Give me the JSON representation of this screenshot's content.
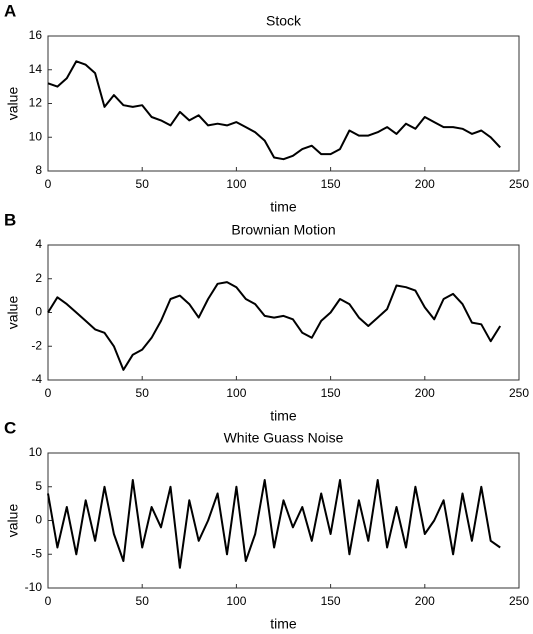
{
  "chart_data": [
    {
      "type": "line",
      "label": "A",
      "title": "Stock",
      "x_label": "time",
      "y_label": "value",
      "x": [
        0,
        5,
        10,
        15,
        20,
        25,
        30,
        35,
        40,
        45,
        50,
        55,
        60,
        65,
        70,
        75,
        80,
        85,
        90,
        95,
        100,
        105,
        110,
        115,
        120,
        125,
        130,
        135,
        140,
        145,
        150,
        155,
        160,
        165,
        170,
        175,
        180,
        185,
        190,
        195,
        200,
        205,
        210,
        215,
        220,
        225,
        230,
        235,
        240
      ],
      "series": [
        {
          "color": "#000000",
          "values": [
            13.2,
            13.0,
            13.5,
            14.5,
            14.3,
            13.8,
            11.8,
            12.5,
            11.9,
            11.8,
            11.9,
            11.2,
            11.0,
            10.7,
            11.5,
            11.0,
            11.3,
            10.7,
            10.8,
            10.7,
            10.9,
            10.6,
            10.3,
            9.8,
            8.8,
            8.7,
            8.9,
            9.3,
            9.5,
            9.0,
            9.0,
            9.3,
            10.4,
            10.1,
            10.1,
            10.3,
            10.6,
            10.2,
            10.8,
            10.5,
            11.2,
            10.9,
            10.6,
            10.6,
            10.5,
            10.2,
            10.4,
            10.0,
            9.4
          ]
        }
      ],
      "xlim": [
        0,
        250
      ],
      "xticks": [
        0,
        50,
        100,
        150,
        200,
        250
      ],
      "ylim": [
        8,
        16
      ],
      "yticks": [
        8,
        10,
        12,
        14,
        16
      ]
    },
    {
      "type": "line",
      "label": "B",
      "title": "Brownian Motion",
      "x_label": "time",
      "y_label": "value",
      "x": [
        0,
        5,
        10,
        15,
        20,
        25,
        30,
        35,
        40,
        45,
        50,
        55,
        60,
        65,
        70,
        75,
        80,
        85,
        90,
        95,
        100,
        105,
        110,
        115,
        120,
        125,
        130,
        135,
        140,
        145,
        150,
        155,
        160,
        165,
        170,
        175,
        180,
        185,
        190,
        195,
        200,
        205,
        210,
        215,
        220,
        225,
        230,
        235,
        240
      ],
      "series": [
        {
          "color": "#000000",
          "values": [
            0,
            0.9,
            0.5,
            0,
            -0.5,
            -1,
            -1.2,
            -2,
            -3.4,
            -2.5,
            -2.2,
            -1.5,
            -0.5,
            0.8,
            1,
            0.5,
            -0.3,
            0.8,
            1.7,
            1.8,
            1.5,
            0.8,
            0.5,
            -0.2,
            -0.3,
            -0.2,
            -0.4,
            -1.2,
            -1.5,
            -0.5,
            0,
            0.8,
            0.5,
            -0.3,
            -0.8,
            -0.3,
            0.2,
            1.6,
            1.5,
            1.3,
            0.3,
            -0.4,
            0.8,
            1.1,
            0.5,
            -0.6,
            -0.7,
            -1.7,
            -0.8
          ]
        }
      ],
      "xlim": [
        0,
        250
      ],
      "xticks": [
        0,
        50,
        100,
        150,
        200,
        250
      ],
      "ylim": [
        -4,
        4
      ],
      "yticks": [
        -4,
        -2,
        0,
        2,
        4
      ]
    },
    {
      "type": "line",
      "label": "C",
      "title": "White Guass Noise",
      "x_label": "time",
      "y_label": "value",
      "x": [
        0,
        5,
        10,
        15,
        20,
        25,
        30,
        35,
        40,
        45,
        50,
        55,
        60,
        65,
        70,
        75,
        80,
        85,
        90,
        95,
        100,
        105,
        110,
        115,
        120,
        125,
        130,
        135,
        140,
        145,
        150,
        155,
        160,
        165,
        170,
        175,
        180,
        185,
        190,
        195,
        200,
        205,
        210,
        215,
        220,
        225,
        230,
        235,
        240
      ],
      "series": [
        {
          "color": "#000000",
          "values": [
            4,
            -4,
            2,
            -5,
            3,
            -3,
            5,
            -2,
            -6,
            6,
            -4,
            2,
            -1,
            5,
            -7,
            3,
            -3,
            0,
            4,
            -5,
            5,
            -6,
            -2,
            6,
            -4,
            3,
            -1,
            2,
            -3,
            4,
            -2,
            6,
            -5,
            3,
            -3,
            6,
            -4,
            2,
            -4,
            5,
            -2,
            0,
            3,
            -5,
            4,
            -3,
            5,
            -3,
            -4
          ]
        }
      ],
      "xlim": [
        0,
        250
      ],
      "xticks": [
        0,
        50,
        100,
        150,
        200,
        250
      ],
      "ylim": [
        -10,
        10
      ],
      "yticks": [
        -10,
        -5,
        0,
        5,
        10
      ]
    }
  ]
}
